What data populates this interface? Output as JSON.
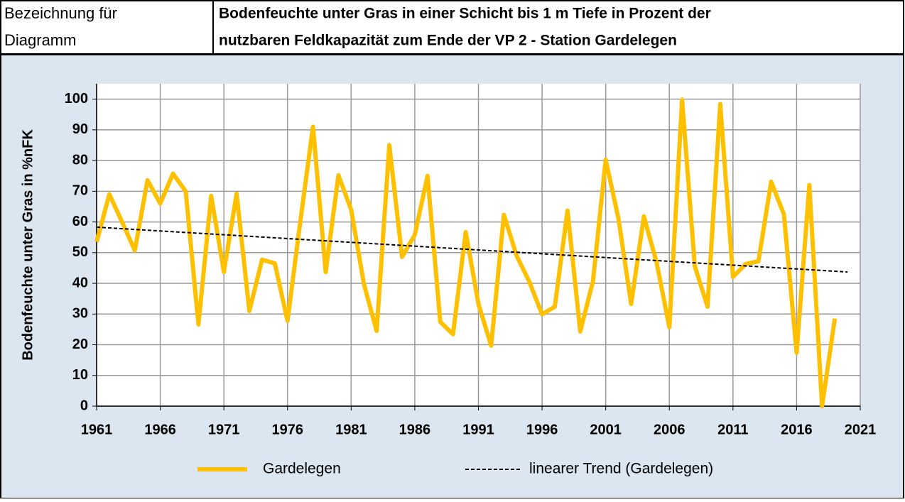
{
  "header": {
    "label": [
      "Bezeichnung für",
      "Diagramm"
    ]
  },
  "chart_data": {
    "type": "line",
    "title": [
      "Bodenfeuchte unter Gras in einer Schicht bis 1 m Tiefe in Prozent der",
      "nutzbaren Feldkapazität zum Ende der VP 2 - Station Gardelegen"
    ],
    "y_label": "Bodenfeuchte unter Gras in %nFK",
    "x": [
      1961,
      1962,
      1963,
      1964,
      1965,
      1966,
      1967,
      1968,
      1969,
      1970,
      1971,
      1972,
      1973,
      1974,
      1975,
      1976,
      1977,
      1978,
      1979,
      1980,
      1981,
      1982,
      1983,
      1984,
      1985,
      1986,
      1987,
      1988,
      1989,
      1990,
      1991,
      1992,
      1993,
      1994,
      1995,
      1996,
      1997,
      1998,
      1999,
      2000,
      2001,
      2002,
      2003,
      2004,
      2005,
      2006,
      2007,
      2008,
      2009,
      2010,
      2011,
      2012,
      2013,
      2014,
      2015,
      2016,
      2017,
      2018,
      2019
    ],
    "series": [
      {
        "name": "Gardelegen",
        "color": "#ffc000",
        "values": [
          53.5,
          69,
          60,
          50.7,
          73.6,
          66,
          75.7,
          70,
          26.6,
          68.5,
          43.7,
          69.2,
          31,
          47.7,
          46.5,
          27.8,
          60,
          91,
          43.7,
          75.2,
          64,
          39.8,
          24.5,
          85,
          48.6,
          55.8,
          75,
          27.5,
          23.4,
          56.7,
          33.3,
          19.7,
          62.3,
          49,
          40.5,
          29.9,
          32.4,
          63.7,
          24.3,
          40.7,
          80.3,
          61.1,
          33.3,
          61.8,
          46.8,
          25.7,
          99.8,
          45.6,
          32.4,
          98.4,
          42.1,
          46.3,
          47.2,
          73.1,
          62.5,
          17.4,
          72,
          0,
          28.5
        ]
      },
      {
        "name": "linearer Trend (Gardelegen)",
        "color": "#000000",
        "dashed": true,
        "x": [
          1961,
          2020
        ],
        "values": [
          58.3,
          43.7
        ]
      }
    ],
    "xlim": [
      1961,
      2021
    ],
    "xticks": [
      1961,
      1966,
      1971,
      1976,
      1981,
      1986,
      1991,
      1996,
      2001,
      2006,
      2011,
      2016,
      2021
    ],
    "ylim": [
      0,
      105
    ],
    "yticks": [
      0,
      10,
      20,
      30,
      40,
      50,
      60,
      70,
      80,
      90,
      100
    ],
    "grid": true,
    "legend": "bottom"
  }
}
